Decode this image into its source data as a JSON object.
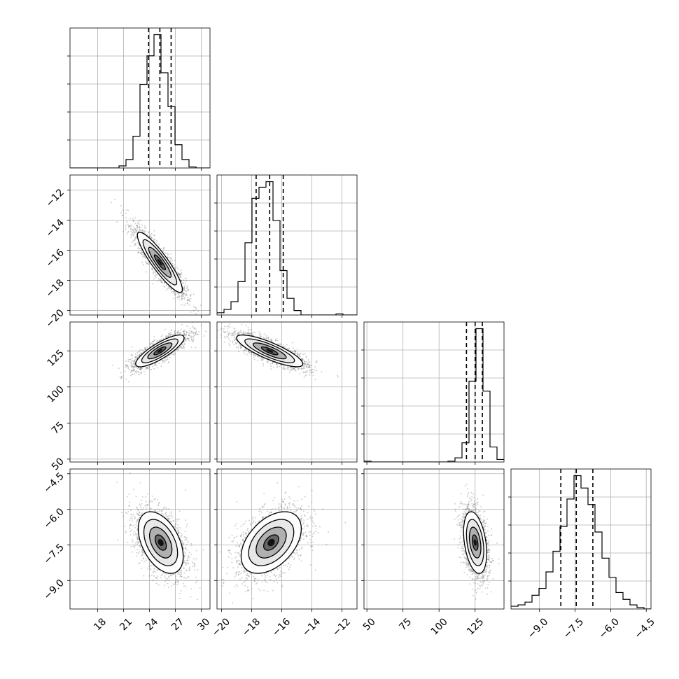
{
  "chart_data": {
    "type": "corner",
    "grid": true,
    "parameters": [
      {
        "range": [
          14.8,
          31.0
        ],
        "median": 25.2,
        "quantiles": [
          23.9,
          25.2,
          26.5
        ],
        "ticks": [
          18,
          21,
          24,
          27,
          30
        ],
        "tick_labels": [
          "18",
          "21",
          "24",
          "27",
          "30"
        ],
        "hist_edges": [
          14.8,
          15.61,
          16.42,
          17.23,
          18.04,
          18.85,
          19.66,
          20.47,
          21.28,
          22.09,
          22.9,
          23.71,
          24.52,
          25.33,
          26.14,
          26.95,
          27.76,
          28.57,
          29.38,
          30.19,
          31.0
        ],
        "hist_counts": [
          0,
          0,
          0,
          0,
          0,
          0,
          0,
          2,
          8,
          30,
          79,
          106,
          126,
          90,
          58,
          22,
          8,
          1,
          0,
          0
        ]
      },
      {
        "range": [
          -20.3,
          -11.0
        ],
        "median": -16.8,
        "quantiles": [
          -17.7,
          -16.8,
          -15.9
        ],
        "ticks": [
          -20,
          -18,
          -16,
          -14,
          -12
        ],
        "tick_labels": [
          "−20",
          "−18",
          "−16",
          "−14",
          "−12"
        ],
        "hist_edges": [
          -20.3,
          -19.835,
          -19.37,
          -18.905,
          -18.44,
          -17.975,
          -17.51,
          -17.045,
          -16.58,
          -16.115,
          -15.65,
          -15.185,
          -14.72,
          -14.255,
          -13.79,
          -13.325,
          -12.86,
          -12.395,
          -11.93,
          -11.465,
          -11.0
        ],
        "hist_counts": [
          2,
          5,
          12,
          30,
          65,
          105,
          115,
          120,
          85,
          40,
          15,
          4,
          0,
          0,
          0,
          0,
          0,
          1,
          0,
          0
        ]
      },
      {
        "range": [
          48.0,
          145.0
        ],
        "median": 125.0,
        "quantiles": [
          119.0,
          125.0,
          130.0
        ],
        "ticks": [
          50,
          75,
          100,
          125
        ],
        "tick_labels": [
          "50",
          "75",
          "100",
          "125"
        ],
        "hist_edges": [
          48.0,
          52.85,
          57.7,
          62.55,
          67.4,
          72.25,
          77.1,
          81.95,
          86.8,
          91.65,
          96.5,
          101.35,
          106.2,
          111.05,
          115.9,
          120.75,
          125.6,
          130.45,
          135.3,
          140.15,
          145.0
        ],
        "hist_counts": [
          1,
          0,
          0,
          0,
          0,
          0,
          0,
          0,
          0,
          0,
          0,
          0,
          1,
          5,
          23,
          97,
          160,
          85,
          18,
          3
        ]
      },
      {
        "range": [
          -10.2,
          -4.3
        ],
        "median": -7.45,
        "quantiles": [
          -8.1,
          -7.45,
          -6.75
        ],
        "ticks": [
          -9.0,
          -7.5,
          -6.0,
          -4.5
        ],
        "tick_labels": [
          "−9.0",
          "−7.5",
          "−6.0",
          "−4.5"
        ],
        "hist_edges": [
          -10.2,
          -9.905,
          -9.61,
          -9.315,
          -9.02,
          -8.725,
          -8.43,
          -8.135,
          -7.84,
          -7.545,
          -7.25,
          -6.955,
          -6.66,
          -6.365,
          -6.07,
          -5.775,
          -5.48,
          -5.185,
          -4.89,
          -4.595,
          -4.3
        ],
        "hist_counts": [
          2,
          3,
          5,
          10,
          15,
          27,
          42,
          60,
          80,
          97,
          88,
          76,
          56,
          37,
          23,
          12,
          7,
          3,
          1,
          0
        ]
      }
    ],
    "pairs": [
      {
        "row": 1,
        "col": 0,
        "mean": [
          25.2,
          -16.8
        ],
        "sd": [
          1.3,
          1.0
        ],
        "corr": -0.9
      },
      {
        "row": 2,
        "col": 0,
        "mean": [
          25.2,
          125.0
        ],
        "sd": [
          1.4,
          5.5
        ],
        "corr": 0.82
      },
      {
        "row": 2,
        "col": 1,
        "mean": [
          -16.8,
          125.0
        ],
        "sd": [
          1.1,
          5.5
        ],
        "corr": -0.82
      },
      {
        "row": 3,
        "col": 0,
        "mean": [
          25.3,
          -7.4
        ],
        "sd": [
          1.3,
          0.65
        ],
        "corr": -0.45
      },
      {
        "row": 3,
        "col": 1,
        "mean": [
          -16.7,
          -7.4
        ],
        "sd": [
          1.0,
          0.65
        ],
        "corr": 0.45
      },
      {
        "row": 3,
        "col": 2,
        "mean": [
          125.0,
          -7.4
        ],
        "sd": [
          4.0,
          0.65
        ],
        "corr": -0.35
      }
    ],
    "contour_levels_sigma": [
      0.5,
      1.0,
      1.5,
      2.0
    ]
  }
}
